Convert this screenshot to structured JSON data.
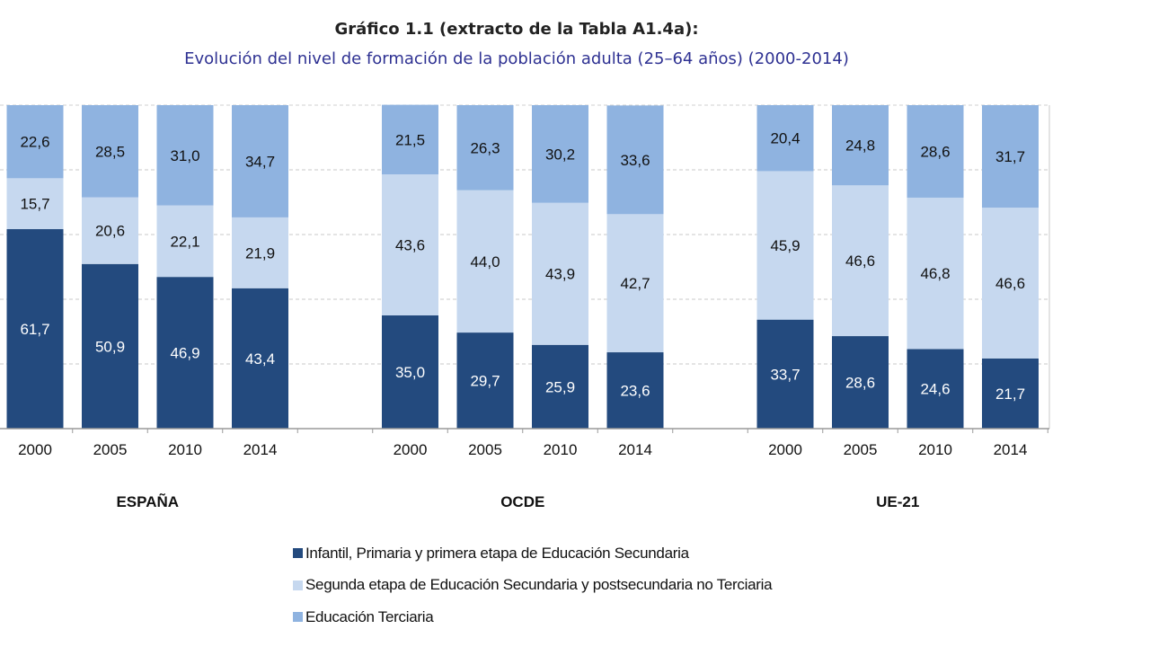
{
  "chart_data": {
    "type": "bar",
    "stacked": true,
    "title": "Gráfico 1.1 (extracto de la Tabla A1.4a):",
    "subtitle": "Evolución del nivel de formación de la población adulta (25–64 años) (2000-2014)",
    "ylim": [
      0,
      100
    ],
    "grid": true,
    "legend_position": "bottom",
    "groups": [
      {
        "name": "ESPAÑA",
        "categories": [
          "2000",
          "2005",
          "2010",
          "2014"
        ],
        "series": [
          [
            61.7,
            50.9,
            46.9,
            43.4
          ],
          [
            15.7,
            20.6,
            22.1,
            21.9
          ],
          [
            22.6,
            28.5,
            31.0,
            34.7
          ]
        ]
      },
      {
        "name": "OCDE",
        "categories": [
          "2000",
          "2005",
          "2010",
          "2014"
        ],
        "series": [
          [
            35.0,
            29.7,
            25.9,
            23.6
          ],
          [
            43.6,
            44.0,
            43.9,
            42.7
          ],
          [
            21.5,
            26.3,
            30.2,
            33.6
          ]
        ]
      },
      {
        "name": "UE-21",
        "categories": [
          "2000",
          "2005",
          "2010",
          "2014"
        ],
        "series": [
          [
            33.7,
            28.6,
            24.6,
            21.7
          ],
          [
            45.9,
            46.6,
            46.8,
            46.6
          ],
          [
            20.4,
            24.8,
            28.6,
            31.7
          ]
        ]
      }
    ],
    "series": [
      {
        "name": "Infantil, Primaria y primera etapa de Educación Secundaria",
        "color": "#234a7e",
        "label_color": "#ffffff"
      },
      {
        "name": "Segunda etapa de Educación Secundaria y postsecundaria no Terciaria",
        "color": "#c6d8ef",
        "label_color": "#111111"
      },
      {
        "name": "Educación Terciaria",
        "color": "#8fb3e0",
        "label_color": "#111111"
      }
    ]
  }
}
